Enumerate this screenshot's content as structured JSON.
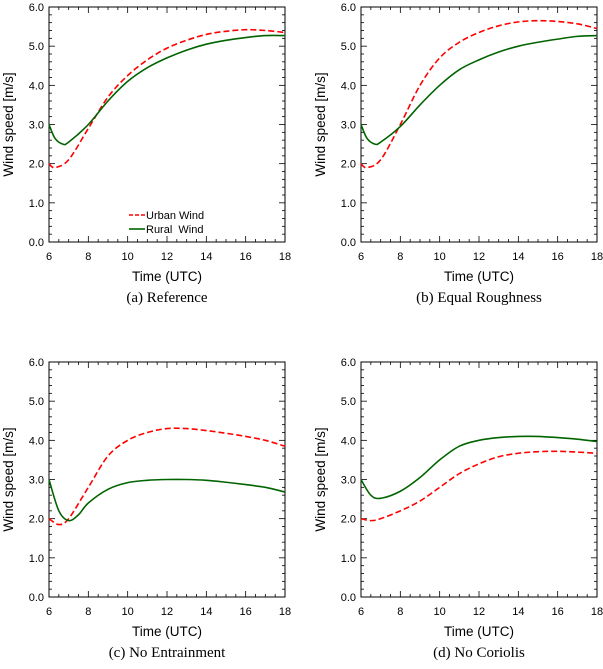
{
  "colors": {
    "urban": "#ff0000",
    "rural": "#006400",
    "axis": "#000000"
  },
  "chart_data": [
    {
      "type": "line",
      "title": "(a) Reference",
      "xlabel": "Time (UTC)",
      "ylabel": "Wind speed [m/s]",
      "xlim": [
        6,
        18
      ],
      "ylim": [
        0,
        6
      ],
      "xticks": [
        "6",
        "8",
        "10",
        "12",
        "14",
        "16",
        "18"
      ],
      "yticks": [
        "0.0",
        "1.0",
        "2.0",
        "3.0",
        "4.0",
        "5.0",
        "6.0"
      ],
      "legend": {
        "position": "bottom-center",
        "entries": [
          "Urban Wind",
          "Rural  Wind"
        ]
      },
      "series": [
        {
          "name": "Urban Wind",
          "style": "dashed",
          "x": [
            6,
            6.3,
            7,
            8,
            9,
            10,
            11,
            12,
            13,
            14,
            15,
            16,
            17,
            18
          ],
          "y": [
            2.0,
            1.9,
            2.1,
            2.9,
            3.7,
            4.25,
            4.65,
            4.95,
            5.15,
            5.3,
            5.38,
            5.42,
            5.4,
            5.35
          ]
        },
        {
          "name": "Rural Wind",
          "style": "solid",
          "x": [
            6,
            6.3,
            6.7,
            7,
            8,
            9,
            10,
            11,
            12,
            13,
            14,
            15,
            16,
            17,
            18
          ],
          "y": [
            3.0,
            2.65,
            2.5,
            2.55,
            3.0,
            3.6,
            4.1,
            4.45,
            4.7,
            4.9,
            5.05,
            5.15,
            5.22,
            5.27,
            5.27
          ]
        }
      ]
    },
    {
      "type": "line",
      "title": "(b) Equal Roughness",
      "xlabel": "Time (UTC)",
      "ylabel": "Wind speed [m/s]",
      "xlim": [
        6,
        18
      ],
      "ylim": [
        0,
        6
      ],
      "xticks": [
        "6",
        "8",
        "10",
        "12",
        "14",
        "16",
        "18"
      ],
      "yticks": [
        "0.0",
        "1.0",
        "2.0",
        "3.0",
        "4.0",
        "5.0",
        "6.0"
      ],
      "series": [
        {
          "name": "Urban Wind",
          "style": "dashed",
          "x": [
            6,
            6.3,
            7,
            8,
            9,
            10,
            11,
            12,
            13,
            14,
            15,
            16,
            17,
            18
          ],
          "y": [
            2.0,
            1.9,
            2.1,
            3.0,
            4.0,
            4.7,
            5.1,
            5.35,
            5.52,
            5.62,
            5.65,
            5.63,
            5.57,
            5.45
          ]
        },
        {
          "name": "Rural Wind",
          "style": "solid",
          "x": [
            6,
            6.3,
            6.7,
            7,
            8,
            9,
            10,
            11,
            12,
            13,
            14,
            15,
            16,
            17,
            18
          ],
          "y": [
            3.0,
            2.65,
            2.5,
            2.55,
            2.95,
            3.5,
            4.0,
            4.4,
            4.65,
            4.85,
            5.0,
            5.1,
            5.18,
            5.25,
            5.27
          ]
        }
      ]
    },
    {
      "type": "line",
      "title": "(c) No Entrainment",
      "xlabel": "Time (UTC)",
      "ylabel": "Wind speed [m/s]",
      "xlim": [
        6,
        18
      ],
      "ylim": [
        0,
        6
      ],
      "xticks": [
        "6",
        "8",
        "10",
        "12",
        "14",
        "16",
        "18"
      ],
      "yticks": [
        "0.0",
        "1.0",
        "2.0",
        "3.0",
        "4.0",
        "5.0",
        "6.0"
      ],
      "series": [
        {
          "name": "Urban Wind",
          "style": "dashed",
          "x": [
            6,
            6.5,
            7,
            8,
            9,
            10,
            11,
            12,
            13,
            14,
            15,
            16,
            17,
            18
          ],
          "y": [
            2.0,
            1.85,
            2.0,
            2.8,
            3.6,
            4.0,
            4.2,
            4.3,
            4.3,
            4.25,
            4.18,
            4.1,
            4.0,
            3.85
          ]
        },
        {
          "name": "Rural Wind",
          "style": "solid",
          "x": [
            6,
            6.5,
            7,
            7.5,
            8,
            9,
            10,
            11,
            12,
            13,
            14,
            15,
            16,
            17,
            18
          ],
          "y": [
            3.0,
            2.2,
            1.95,
            2.1,
            2.4,
            2.75,
            2.92,
            2.98,
            3.0,
            3.0,
            2.98,
            2.93,
            2.87,
            2.8,
            2.68
          ]
        }
      ]
    },
    {
      "type": "line",
      "title": "(d) No Coriolis",
      "xlabel": "Time (UTC)",
      "ylabel": "Wind speed [m/s]",
      "xlim": [
        6,
        18
      ],
      "ylim": [
        0,
        6
      ],
      "xticks": [
        "6",
        "8",
        "10",
        "12",
        "14",
        "16",
        "18"
      ],
      "yticks": [
        "0.0",
        "1.0",
        "2.0",
        "3.0",
        "4.0",
        "5.0",
        "6.0"
      ],
      "series": [
        {
          "name": "Urban Wind",
          "style": "dashed",
          "x": [
            6,
            6.5,
            7,
            8,
            9,
            10,
            11,
            12,
            13,
            14,
            15,
            16,
            17,
            18
          ],
          "y": [
            2.0,
            1.95,
            2.0,
            2.2,
            2.45,
            2.8,
            3.15,
            3.4,
            3.58,
            3.67,
            3.71,
            3.72,
            3.7,
            3.67
          ]
        },
        {
          "name": "Rural Wind",
          "style": "solid",
          "x": [
            6,
            6.5,
            7,
            8,
            9,
            10,
            11,
            12,
            13,
            14,
            15,
            16,
            17,
            18
          ],
          "y": [
            3.0,
            2.6,
            2.52,
            2.7,
            3.05,
            3.5,
            3.85,
            4.0,
            4.07,
            4.1,
            4.1,
            4.07,
            4.03,
            3.97
          ]
        }
      ]
    }
  ]
}
